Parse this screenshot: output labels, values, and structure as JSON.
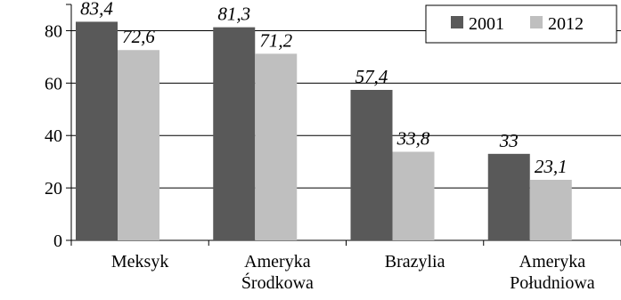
{
  "chart_data": {
    "type": "bar",
    "title": "",
    "xlabel": "",
    "ylabel": "",
    "categories": [
      [
        "Meksyk"
      ],
      [
        "Ameryka",
        "Środkowa"
      ],
      [
        "Brazylia"
      ],
      [
        "Ameryka",
        "Południowa"
      ]
    ],
    "series": [
      {
        "name": "2001",
        "color": "#595959",
        "values": [
          83.4,
          81.3,
          57.4,
          33
        ],
        "labels": [
          "83,4",
          "81,3",
          "57,4",
          "33"
        ]
      },
      {
        "name": "2012",
        "color": "#bfbfbf",
        "values": [
          72.6,
          71.2,
          33.8,
          23.1
        ],
        "labels": [
          "72,6",
          "71,2",
          "33,8",
          "23,1"
        ]
      }
    ],
    "ylim": [
      0,
      90
    ],
    "yticks": [
      0,
      20,
      40,
      60,
      80
    ],
    "grid": "horizontal major lines",
    "legend_position": "top-right",
    "data_labels": "italic, above bars"
  }
}
